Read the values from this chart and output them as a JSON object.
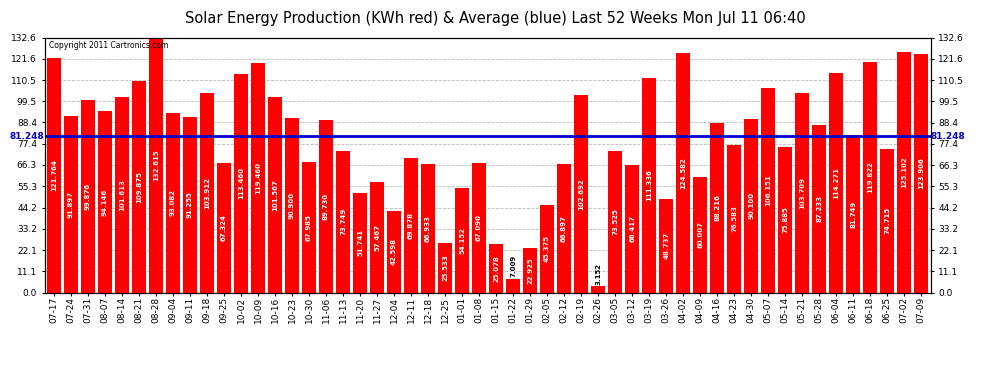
{
  "title": "Solar Energy Production (KWh red) & Average (blue) Last 52 Weeks Mon Jul 11 06:40",
  "copyright": "Copyright 2011 Cartronics.com",
  "categories": [
    "07-17",
    "07-24",
    "07-31",
    "08-07",
    "08-14",
    "08-21",
    "08-28",
    "09-04",
    "09-11",
    "09-18",
    "09-25",
    "10-02",
    "10-09",
    "10-16",
    "10-23",
    "10-30",
    "11-06",
    "11-13",
    "11-20",
    "11-27",
    "12-04",
    "12-11",
    "12-18",
    "12-25",
    "01-01",
    "01-08",
    "01-15",
    "01-22",
    "01-29",
    "02-05",
    "02-12",
    "02-19",
    "02-26",
    "03-05",
    "03-12",
    "03-19",
    "03-26",
    "04-02",
    "04-09",
    "04-16",
    "04-23",
    "04-30",
    "05-07",
    "05-14",
    "05-21",
    "05-28",
    "06-04",
    "06-11",
    "06-18",
    "06-25",
    "07-02",
    "07-09"
  ],
  "values": [
    121.764,
    91.897,
    99.876,
    94.146,
    101.613,
    109.875,
    132.615,
    93.082,
    91.255,
    103.912,
    67.324,
    113.46,
    119.46,
    101.567,
    90.9,
    67.985,
    89.73,
    73.749,
    51.741,
    57.467,
    42.598,
    69.878,
    66.933,
    25.533,
    54.152,
    67.09,
    25.078,
    7.009,
    22.925,
    45.375,
    66.897,
    102.692,
    3.152,
    73.525,
    66.417,
    111.336,
    48.737,
    124.582,
    60.007,
    88.216,
    76.583,
    90.1,
    106.151,
    75.885,
    103.709,
    87.233,
    114.271,
    81.749,
    119.822,
    74.715,
    125.102,
    123.906
  ],
  "average": 81.248,
  "average_label": "81.248",
  "bar_color": "#FF0000",
  "avg_line_color": "#0000CC",
  "bg_color": "#FFFFFF",
  "plot_bg_color": "#FFFFFF",
  "grid_color": "#BBBBBB",
  "text_color_bar": "#FFFFFF",
  "ylim": [
    0.0,
    132.6
  ],
  "yticks": [
    0.0,
    11.1,
    22.1,
    33.2,
    44.2,
    55.3,
    66.3,
    77.4,
    88.4,
    99.5,
    110.5,
    121.6,
    132.6
  ],
  "title_fontsize": 10.5,
  "tick_fontsize": 6.5,
  "bar_label_fontsize": 5.0
}
